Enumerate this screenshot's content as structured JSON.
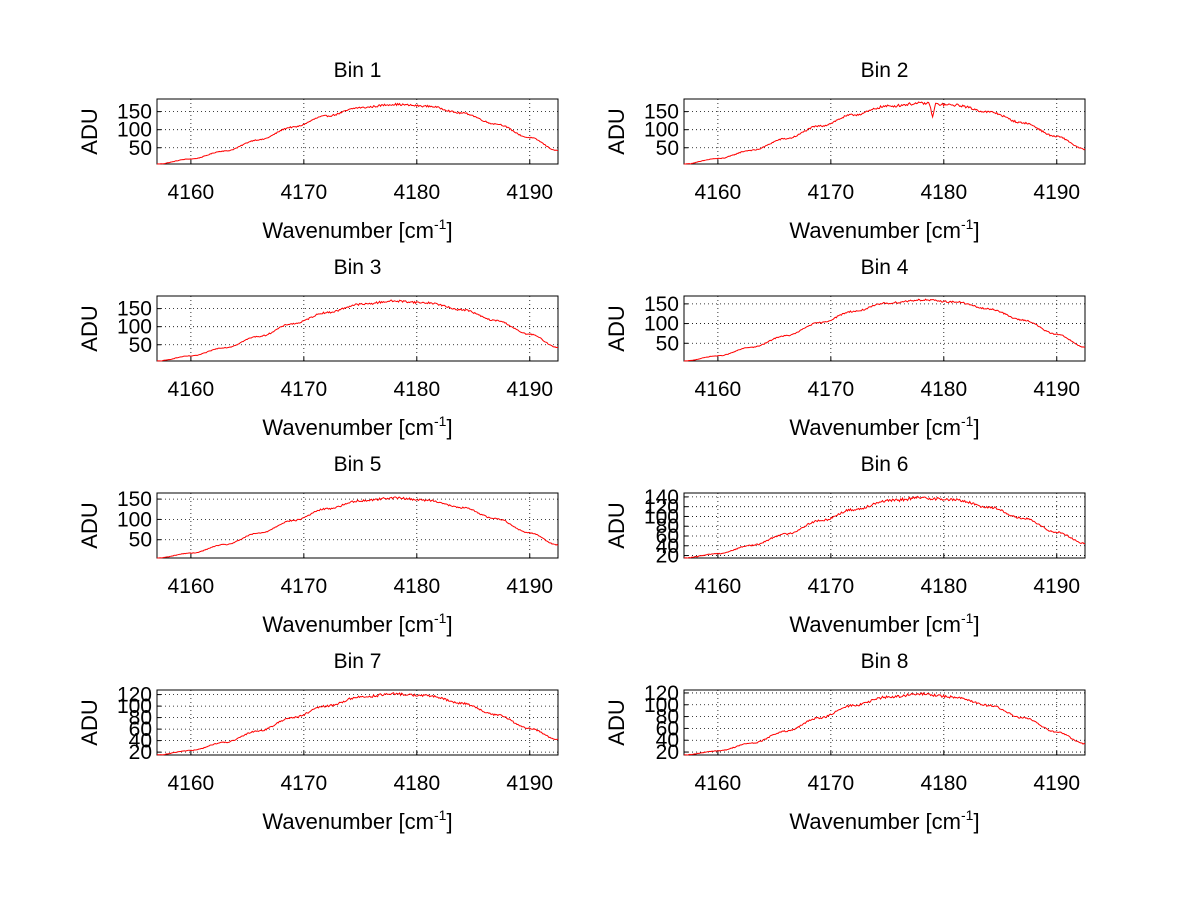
{
  "colors": {
    "line": "#ff0000",
    "axis": "#000000",
    "background": "#ffffff"
  },
  "chart_data": [
    {
      "type": "line",
      "title": "Bin 1",
      "xlabel": "Wavenumber [cm-1]",
      "xlabel_main": "Wavenumber [cm",
      "xlabel_sup": "-1",
      "xlabel_end": "]",
      "ylabel": "ADU",
      "xlim": [
        4157,
        4192.5
      ],
      "ylim": [
        5,
        185
      ],
      "xticks": [
        4160,
        4170,
        4180,
        4190
      ],
      "yticks": [
        50,
        100,
        150
      ],
      "grid": true,
      "series": [
        {
          "name": "Bin 1",
          "peak_x": 4178.2,
          "peak_y": 170,
          "width": 8.6,
          "noise": 2.2,
          "x": [
            4157,
            4160,
            4163,
            4166,
            4169,
            4172,
            4175,
            4178,
            4181,
            4184,
            4187,
            4190,
            4192.5
          ],
          "y": [
            5,
            19,
            41,
            72,
            107,
            138,
            161,
            170,
            165,
            146,
            116,
            78,
            42
          ]
        }
      ]
    },
    {
      "type": "line",
      "title": "Bin 2",
      "xlabel": "Wavenumber [cm-1]",
      "xlabel_main": "Wavenumber [cm",
      "xlabel_sup": "-1",
      "xlabel_end": "]",
      "ylabel": "ADU",
      "xlim": [
        4157,
        4192.5
      ],
      "ylim": [
        5,
        185
      ],
      "xticks": [
        4160,
        4170,
        4180,
        4190
      ],
      "yticks": [
        50,
        100,
        150
      ],
      "grid": true,
      "series": [
        {
          "name": "Bin 2",
          "peak_x": 4178.0,
          "peak_y": 173,
          "width": 8.7,
          "noise": 3.0,
          "dip_x": 4179.0,
          "dip_depth": 40,
          "x": [
            4157,
            4160,
            4163,
            4166,
            4169,
            4172,
            4175,
            4178,
            4181,
            4184,
            4187,
            4190,
            4192.5
          ],
          "y": [
            5,
            20,
            43,
            75,
            110,
            141,
            165,
            173,
            168,
            149,
            119,
            81,
            46
          ]
        }
      ]
    },
    {
      "type": "line",
      "title": "Bin 3",
      "xlabel": "Wavenumber [cm-1]",
      "xlabel_main": "Wavenumber [cm",
      "xlabel_sup": "-1",
      "xlabel_end": "]",
      "ylabel": "ADU",
      "xlim": [
        4157,
        4192.5
      ],
      "ylim": [
        5,
        185
      ],
      "xticks": [
        4160,
        4170,
        4180,
        4190
      ],
      "yticks": [
        50,
        100,
        150
      ],
      "grid": true,
      "series": [
        {
          "name": "Bin 3",
          "peak_x": 4178.0,
          "peak_y": 171,
          "width": 8.6,
          "noise": 2.4,
          "x": [
            4157,
            4160,
            4163,
            4166,
            4169,
            4172,
            4175,
            4178,
            4181,
            4184,
            4187,
            4190,
            4192.5
          ],
          "y": [
            5,
            19,
            42,
            73,
            108,
            139,
            162,
            171,
            166,
            147,
            117,
            79,
            43
          ]
        }
      ]
    },
    {
      "type": "line",
      "title": "Bin 4",
      "xlabel": "Wavenumber [cm-1]",
      "xlabel_main": "Wavenumber [cm",
      "xlabel_sup": "-1",
      "xlabel_end": "]",
      "ylabel": "ADU",
      "xlim": [
        4157,
        4192.5
      ],
      "ylim": [
        5,
        170
      ],
      "xticks": [
        4160,
        4170,
        4180,
        4190
      ],
      "yticks": [
        50,
        100,
        150
      ],
      "grid": true,
      "series": [
        {
          "name": "Bin 4",
          "peak_x": 4177.8,
          "peak_y": 160,
          "width": 8.7,
          "noise": 2.0,
          "x": [
            4157,
            4160,
            4163,
            4166,
            4169,
            4172,
            4175,
            4178,
            4181,
            4184,
            4187,
            4190,
            4192.5
          ],
          "y": [
            5,
            18,
            40,
            69,
            102,
            131,
            152,
            160,
            155,
            137,
            109,
            73,
            40
          ]
        }
      ]
    },
    {
      "type": "line",
      "title": "Bin 5",
      "xlabel": "Wavenumber [cm-1]",
      "xlabel_main": "Wavenumber [cm",
      "xlabel_sup": "-1",
      "xlabel_end": "]",
      "ylabel": "ADU",
      "xlim": [
        4157,
        4192.5
      ],
      "ylim": [
        5,
        165
      ],
      "xticks": [
        4160,
        4170,
        4180,
        4190
      ],
      "yticks": [
        50,
        100,
        150
      ],
      "grid": true,
      "series": [
        {
          "name": "Bin 5",
          "peak_x": 4177.5,
          "peak_y": 153,
          "width": 8.5,
          "noise": 2.0,
          "x": [
            4157,
            4160,
            4163,
            4166,
            4169,
            4172,
            4175,
            4178,
            4181,
            4184,
            4187,
            4190,
            4192.5
          ],
          "y": [
            5,
            17,
            38,
            66,
            97,
            126,
            146,
            153,
            147,
            129,
            102,
            67,
            37
          ]
        }
      ]
    },
    {
      "type": "line",
      "title": "Bin 6",
      "xlabel": "Wavenumber [cm-1]",
      "xlabel_main": "Wavenumber [cm",
      "xlabel_sup": "-1",
      "xlabel_end": "]",
      "ylabel": "ADU",
      "xlim": [
        4157,
        4192.5
      ],
      "ylim": [
        15,
        148
      ],
      "xticks": [
        4160,
        4170,
        4180,
        4190
      ],
      "yticks": [
        20,
        40,
        60,
        80,
        100,
        120,
        140
      ],
      "grid": true,
      "series": [
        {
          "name": "Bin 6",
          "peak_x": 4177.8,
          "peak_y": 138,
          "width": 8.6,
          "noise": 2.6,
          "x": [
            4157,
            4160,
            4163,
            4166,
            4169,
            4172,
            4175,
            4178,
            4181,
            4184,
            4187,
            4190,
            4192.5
          ],
          "y": [
            15,
            24,
            41,
            64,
            91,
            114,
            132,
            138,
            134,
            119,
            96,
            68,
            45
          ]
        }
      ]
    },
    {
      "type": "line",
      "title": "Bin 7",
      "xlabel": "Wavenumber [cm-1]",
      "xlabel_main": "Wavenumber [cm",
      "xlabel_sup": "-1",
      "xlabel_end": "]",
      "ylabel": "ADU",
      "xlim": [
        4157,
        4192.5
      ],
      "ylim": [
        15,
        128
      ],
      "xticks": [
        4160,
        4170,
        4180,
        4190
      ],
      "yticks": [
        20,
        40,
        60,
        80,
        100,
        120
      ],
      "grid": true,
      "series": [
        {
          "name": "Bin 7",
          "peak_x": 4177.8,
          "peak_y": 121,
          "width": 8.7,
          "noise": 1.8,
          "x": [
            4157,
            4160,
            4163,
            4166,
            4169,
            4172,
            4175,
            4178,
            4181,
            4184,
            4187,
            4190,
            4192.5
          ],
          "y": [
            15,
            23,
            37,
            57,
            80,
            100,
            116,
            121,
            118,
            105,
            85,
            61,
            42
          ]
        }
      ]
    },
    {
      "type": "line",
      "title": "Bin 8",
      "xlabel": "Wavenumber [cm-1]",
      "xlabel_main": "Wavenumber [cm",
      "xlabel_sup": "-1",
      "xlabel_end": "]",
      "ylabel": "ADU",
      "xlim": [
        4157,
        4192.5
      ],
      "ylim": [
        15,
        125
      ],
      "xticks": [
        4160,
        4170,
        4180,
        4190
      ],
      "yticks": [
        20,
        40,
        60,
        80,
        100,
        120
      ],
      "grid": true,
      "series": [
        {
          "name": "Bin 8",
          "peak_x": 4177.0,
          "peak_y": 118,
          "width": 8.4,
          "noise": 1.8,
          "x": [
            4157,
            4160,
            4163,
            4166,
            4169,
            4172,
            4175,
            4178,
            4181,
            4184,
            4187,
            4190,
            4192.5
          ],
          "y": [
            15,
            22,
            35,
            55,
            78,
            99,
            113,
            118,
            113,
            99,
            78,
            54,
            34
          ]
        }
      ]
    }
  ]
}
